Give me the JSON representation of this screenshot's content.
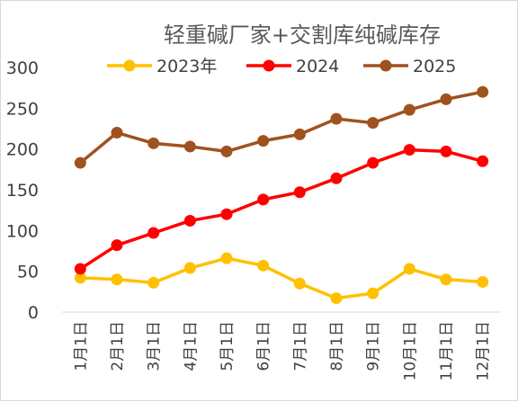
{
  "chart_data": {
    "type": "line",
    "title": "轻重碱厂家+交割库纯碱库存",
    "categories": [
      "1月1日",
      "2月1日",
      "3月1日",
      "4月1日",
      "5月1日",
      "6月1日",
      "7月1日",
      "8月1日",
      "9月1日",
      "10月1日",
      "11月1日",
      "12月1日"
    ],
    "ylim": [
      0,
      300
    ],
    "yticks": [
      "0",
      "50",
      "100",
      "150",
      "200",
      "250",
      "300"
    ],
    "grid": false,
    "legend_position": "top",
    "series": [
      {
        "name": "2023年",
        "color": "#FFC000",
        "values": [
          42,
          40,
          36,
          54,
          66,
          57,
          35,
          17,
          23,
          53,
          40,
          37
        ]
      },
      {
        "name": "2024",
        "color": "#FF0000",
        "values": [
          53,
          82,
          97,
          112,
          120,
          138,
          147,
          164,
          183,
          199,
          197,
          185
        ]
      },
      {
        "name": "2025",
        "color": "#A0521E",
        "values": [
          183,
          220,
          207,
          203,
          197,
          210,
          218,
          237,
          232,
          248,
          261,
          270
        ]
      }
    ]
  }
}
